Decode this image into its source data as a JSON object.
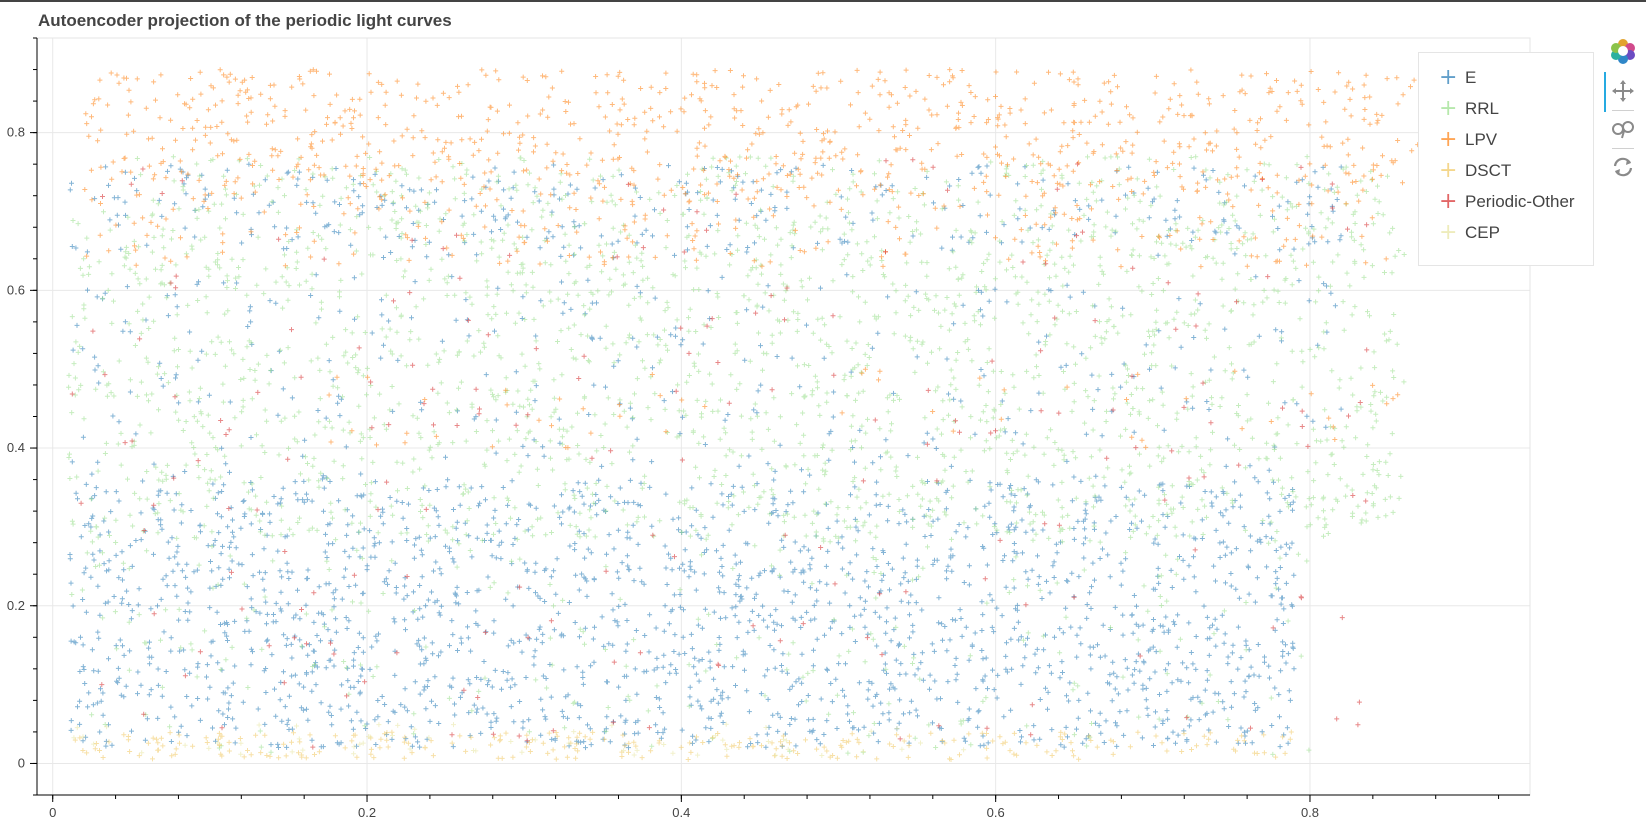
{
  "chart_data": {
    "type": "scatter",
    "title": "Autoencoder projection of the periodic light curves",
    "xlabel": "",
    "ylabel": "",
    "xlim": [
      -0.01,
      0.94
    ],
    "ylim": [
      -0.04,
      0.92
    ],
    "x_ticks": [
      "0",
      "0.2",
      "0.4",
      "0.6",
      "0.8"
    ],
    "x_tick_values": [
      0,
      0.2,
      0.4,
      0.6,
      0.8
    ],
    "y_ticks": [
      "0",
      "0.2",
      "0.4",
      "0.6",
      "0.8"
    ],
    "y_tick_values": [
      0,
      0.2,
      0.4,
      0.6,
      0.8
    ],
    "marker": "cross",
    "grid": true,
    "legend_position": "top-right",
    "series": [
      {
        "name": "E",
        "color": "#1f77b4",
        "approx_points": 2600,
        "regions": [
          {
            "x": [
              0.01,
              0.79
            ],
            "y": [
              0.02,
              0.36
            ],
            "weight": 0.75
          },
          {
            "x": [
              0.01,
              0.82
            ],
            "y": [
              0.36,
              0.62
            ],
            "weight": 0.12
          },
          {
            "x": [
              0.01,
              0.82
            ],
            "y": [
              0.64,
              0.76
            ],
            "weight": 0.13
          }
        ]
      },
      {
        "name": "RRL",
        "color": "#98df8a",
        "approx_points": 2400,
        "regions": [
          {
            "x": [
              0.01,
              0.86
            ],
            "y": [
              0.28,
              0.7
            ],
            "weight": 0.8
          },
          {
            "x": [
              0.01,
              0.8
            ],
            "y": [
              0.01,
              0.28
            ],
            "weight": 0.1
          },
          {
            "x": [
              0.05,
              0.85
            ],
            "y": [
              0.7,
              0.77
            ],
            "weight": 0.1
          }
        ]
      },
      {
        "name": "LPV",
        "color": "#ff7f0e",
        "approx_points": 1100,
        "regions": [
          {
            "x": [
              0.02,
              0.87
            ],
            "y": [
              0.72,
              0.88
            ],
            "weight": 0.75
          },
          {
            "x": [
              0.02,
              0.85
            ],
            "y": [
              0.63,
              0.72
            ],
            "weight": 0.2
          },
          {
            "x": [
              0.15,
              0.86
            ],
            "y": [
              0.4,
              0.5
            ],
            "weight": 0.05
          }
        ]
      },
      {
        "name": "DSCT",
        "color": "#f0c75e",
        "approx_points": 260,
        "regions": [
          {
            "x": [
              0.01,
              0.79
            ],
            "y": [
              0.005,
              0.04
            ],
            "weight": 1.0
          }
        ]
      },
      {
        "name": "Periodic-Other",
        "color": "#d62728",
        "approx_points": 220,
        "regions": [
          {
            "x": [
              0.01,
              0.85
            ],
            "y": [
              0.02,
              0.77
            ],
            "weight": 1.0
          }
        ]
      },
      {
        "name": "CEP",
        "color": "#e8e5a0",
        "approx_points": 60,
        "regions": [
          {
            "x": [
              0.01,
              0.6
            ],
            "y": [
              0.01,
              0.05
            ],
            "weight": 1.0
          }
        ]
      }
    ]
  },
  "toolbar": {
    "tools": [
      {
        "name": "bokeh-logo-icon",
        "active": false
      },
      {
        "name": "pan-icon",
        "active": true
      },
      {
        "name": "wheel-zoom-icon",
        "active": false
      },
      {
        "name": "reset-icon",
        "active": false
      }
    ]
  }
}
